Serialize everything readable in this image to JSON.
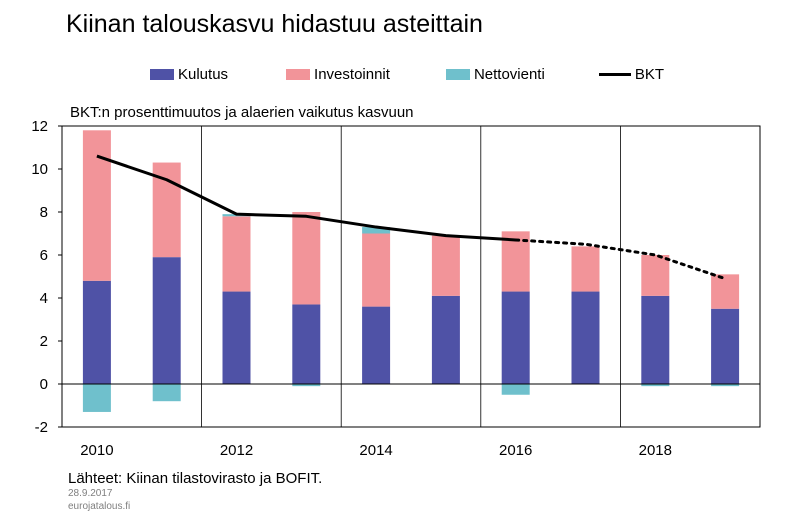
{
  "title": "Kiinan talouskasvu hidastuu asteittain",
  "subtitle": "BKT:n prosenttimuutos ja alaerien vaikutus kasvuun",
  "source": "Lähteet: Kiinan tilastovirasto ja BOFIT.",
  "date": "28.9.2017",
  "site": "eurojatalous.fi",
  "colors": {
    "kulutus": "#4f52a6",
    "investoinnit": "#f29499",
    "nettovienti": "#6fc0cc",
    "bkt": "#000000"
  },
  "chart_data": {
    "type": "bar",
    "stacked": true,
    "title": "Kiinan talouskasvu hidastuu asteittain",
    "subtitle": "BKT:n prosenttimuutos ja alaerien vaikutus kasvuun",
    "categories": [
      "2010",
      "2011",
      "2012",
      "2013",
      "2014",
      "2015",
      "2016",
      "2017",
      "2018",
      "2019"
    ],
    "x_tick_labels": [
      "2010",
      "",
      "2012",
      "",
      "2014",
      "",
      "2016",
      "",
      "2018",
      ""
    ],
    "ylim": [
      -2,
      12
    ],
    "y_ticks": [
      -2,
      0,
      2,
      4,
      6,
      8,
      10,
      12
    ],
    "grid": true,
    "legend_position": "top",
    "series": [
      {
        "name": "Kulutus",
        "type": "bar",
        "values": [
          4.8,
          5.9,
          4.3,
          3.7,
          3.6,
          4.1,
          4.3,
          4.3,
          4.1,
          3.5
        ]
      },
      {
        "name": "Investoinnit",
        "type": "bar",
        "values": [
          7.0,
          4.4,
          3.5,
          4.3,
          3.4,
          2.8,
          2.8,
          2.1,
          1.9,
          1.6
        ]
      },
      {
        "name": "Nettovienti",
        "type": "bar",
        "values": [
          -1.3,
          -0.8,
          0.1,
          -0.1,
          0.3,
          0.0,
          -0.5,
          0.0,
          -0.1,
          -0.1
        ]
      },
      {
        "name": "BKT",
        "type": "line",
        "values": [
          10.6,
          9.5,
          7.9,
          7.8,
          7.3,
          6.9,
          6.7,
          6.5,
          6.0,
          4.9
        ],
        "forecast_from": "2016"
      }
    ]
  }
}
